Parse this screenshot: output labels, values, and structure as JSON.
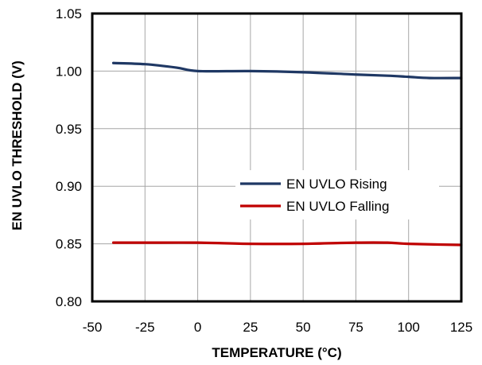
{
  "chart_data": {
    "type": "line",
    "xlabel": "TEMPERATURE (°C)",
    "ylabel": "EN UVLO THRESHOLD (V)",
    "xlim": [
      -50,
      125
    ],
    "ylim": [
      0.8,
      1.05
    ],
    "x_ticks": [
      "-50",
      "-25",
      "0",
      "25",
      "50",
      "75",
      "100",
      "125"
    ],
    "x_tick_values": [
      -50,
      -25,
      0,
      25,
      50,
      75,
      100,
      125
    ],
    "y_ticks": [
      "0.80",
      "0.85",
      "0.90",
      "0.95",
      "1.00",
      "1.05"
    ],
    "y_tick_values": [
      0.8,
      0.85,
      0.9,
      0.95,
      1.0,
      1.05
    ],
    "grid": true,
    "legend_position": "center-right",
    "series": [
      {
        "name": "EN UVLO Rising",
        "color": "#1f3864",
        "x": [
          -40,
          -25,
          -10,
          0,
          25,
          50,
          75,
          90,
          100,
          110,
          125
        ],
        "y": [
          1.007,
          1.006,
          1.003,
          1.0,
          1.0,
          0.999,
          0.997,
          0.996,
          0.995,
          0.994,
          0.994
        ]
      },
      {
        "name": "EN UVLO Falling",
        "color": "#c00000",
        "x": [
          -40,
          -25,
          0,
          25,
          50,
          75,
          90,
          100,
          125
        ],
        "y": [
          0.851,
          0.851,
          0.851,
          0.85,
          0.85,
          0.851,
          0.851,
          0.85,
          0.849
        ]
      }
    ]
  }
}
